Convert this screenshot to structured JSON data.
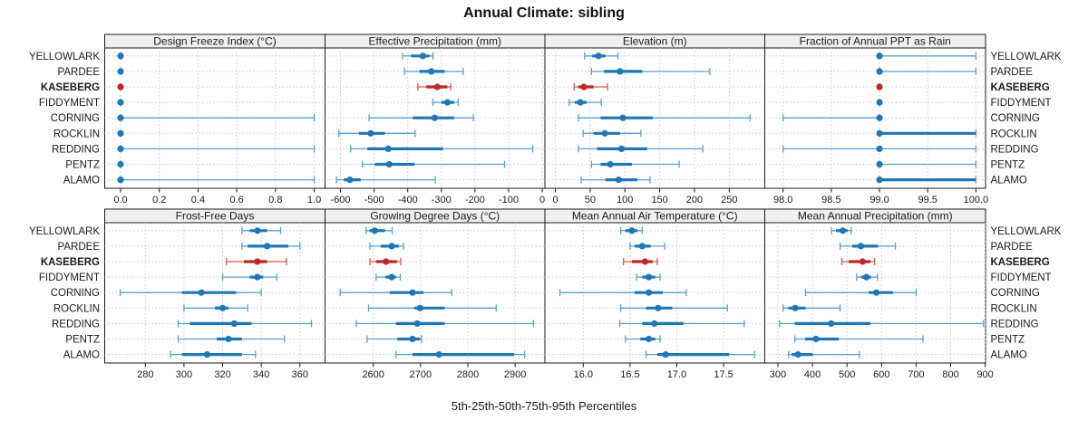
{
  "title": "Annual Climate: sibling",
  "caption": "5th-25th-50th-75th-95th Percentiles",
  "colors": {
    "normal": "#1f77b4",
    "normal_light": "#5b9fcf",
    "highlight": "#bf2626",
    "highlight_light": "#d05c50",
    "header_bg": "#f0f0f0",
    "border": "#1a1a1a",
    "grid": "#c8c8c8",
    "text": "#1a1a1a"
  },
  "stations": [
    "YELLOWLARK",
    "PARDEE",
    "KASEBERG",
    "FIDDYMENT",
    "CORNING",
    "ROCKLIN",
    "REDDING",
    "PENTZ",
    "ALAMO"
  ],
  "highlight_station": "KASEBERG",
  "chart_data": [
    {
      "type": "percentile-dotplot",
      "title": "Design Freeze Index (°C)",
      "percentile_labels": [
        "5th",
        "25th",
        "50th",
        "75th",
        "95th"
      ],
      "xlim": [
        -0.082,
        1.056
      ],
      "ticks": [
        0.0,
        0.2,
        0.4,
        0.6,
        0.8,
        1.0
      ],
      "tick_labels": [
        "0.0",
        "0.2",
        "0.4",
        "0.6",
        "0.8",
        "1.0"
      ],
      "series": [
        {
          "station": "YELLOWLARK",
          "values": [
            0,
            0,
            0,
            0,
            0
          ]
        },
        {
          "station": "PARDEE",
          "values": [
            0,
            0,
            0,
            0,
            0
          ]
        },
        {
          "station": "KASEBERG",
          "values": [
            0,
            0,
            0,
            0,
            0
          ]
        },
        {
          "station": "FIDDYMENT",
          "values": [
            0,
            0,
            0,
            0,
            0
          ]
        },
        {
          "station": "CORNING",
          "values": [
            0,
            0,
            0,
            0,
            1
          ]
        },
        {
          "station": "ROCKLIN",
          "values": [
            0,
            0,
            0,
            0,
            0
          ]
        },
        {
          "station": "REDDING",
          "values": [
            0,
            0,
            0,
            0,
            1
          ]
        },
        {
          "station": "PENTZ",
          "values": [
            0,
            0,
            0,
            0,
            0
          ]
        },
        {
          "station": "ALAMO",
          "values": [
            0,
            0,
            0,
            0,
            1
          ]
        }
      ]
    },
    {
      "type": "percentile-dotplot",
      "title": "Effective Precipitation (mm)",
      "percentile_labels": [
        "5th",
        "25th",
        "50th",
        "75th",
        "95th"
      ],
      "xlim": [
        -646,
        8
      ],
      "ticks": [
        -600,
        -500,
        -400,
        -300,
        -200,
        -100,
        0
      ],
      "tick_labels": [
        "-600",
        "-500",
        "-400",
        "-300",
        "-200",
        "-100",
        "0"
      ],
      "series": [
        {
          "station": "YELLOWLARK",
          "values": [
            -415,
            -390,
            -355,
            -335,
            -325
          ]
        },
        {
          "station": "PARDEE",
          "values": [
            -410,
            -365,
            -330,
            -290,
            -235
          ]
        },
        {
          "station": "KASEBERG",
          "values": [
            -370,
            -345,
            -312,
            -282,
            -272
          ]
        },
        {
          "station": "FIDDYMENT",
          "values": [
            -325,
            -300,
            -282,
            -262,
            -250
          ]
        },
        {
          "station": "CORNING",
          "values": [
            -515,
            -385,
            -320,
            -262,
            -205
          ]
        },
        {
          "station": "ROCKLIN",
          "values": [
            -605,
            -545,
            -510,
            -468,
            -378
          ]
        },
        {
          "station": "REDDING",
          "values": [
            -570,
            -520,
            -458,
            -295,
            -28
          ]
        },
        {
          "station": "PENTZ",
          "values": [
            -535,
            -498,
            -455,
            -380,
            -112
          ]
        },
        {
          "station": "ALAMO",
          "values": [
            -612,
            -590,
            -572,
            -540,
            -318
          ]
        }
      ]
    },
    {
      "type": "percentile-dotplot",
      "title": "Elevation (m)",
      "percentile_labels": [
        "5th",
        "25th",
        "50th",
        "75th",
        "95th"
      ],
      "xlim": [
        -15,
        301
      ],
      "ticks": [
        0,
        50,
        100,
        150,
        200,
        250
      ],
      "tick_labels": [
        "0",
        "50",
        "100",
        "150",
        "200",
        "250"
      ],
      "series": [
        {
          "station": "YELLOWLARK",
          "values": [
            42,
            53,
            62,
            72,
            90
          ]
        },
        {
          "station": "PARDEE",
          "values": [
            52,
            70,
            93,
            125,
            222
          ]
        },
        {
          "station": "KASEBERG",
          "values": [
            27,
            33,
            41,
            55,
            75
          ]
        },
        {
          "station": "FIDDYMENT",
          "values": [
            20,
            28,
            36,
            45,
            66
          ]
        },
        {
          "station": "CORNING",
          "values": [
            33,
            65,
            97,
            140,
            280
          ]
        },
        {
          "station": "ROCKLIN",
          "values": [
            40,
            55,
            71,
            93,
            123
          ]
        },
        {
          "station": "REDDING",
          "values": [
            33,
            60,
            95,
            132,
            212
          ]
        },
        {
          "station": "PENTZ",
          "values": [
            52,
            65,
            79,
            110,
            178
          ]
        },
        {
          "station": "ALAMO",
          "values": [
            37,
            72,
            91,
            118,
            136
          ]
        }
      ]
    },
    {
      "type": "percentile-dotplot",
      "title": "Fraction of Annual PPT as Rain",
      "percentile_labels": [
        "5th",
        "25th",
        "50th",
        "75th",
        "95th"
      ],
      "xlim": [
        97.81,
        100.1
      ],
      "ticks": [
        98.0,
        98.5,
        99.0,
        99.5,
        100.0
      ],
      "tick_labels": [
        "98.0",
        "98.5",
        "99.0",
        "99.5",
        "100.0"
      ],
      "series": [
        {
          "station": "YELLOWLARK",
          "values": [
            99,
            99,
            99,
            99,
            100
          ]
        },
        {
          "station": "PARDEE",
          "values": [
            99,
            99,
            99,
            99,
            100
          ]
        },
        {
          "station": "KASEBERG",
          "values": [
            99,
            99,
            99,
            99,
            99
          ]
        },
        {
          "station": "FIDDYMENT",
          "values": [
            99,
            99,
            99,
            99,
            99
          ]
        },
        {
          "station": "CORNING",
          "values": [
            98,
            99,
            99,
            99,
            99
          ]
        },
        {
          "station": "ROCKLIN",
          "values": [
            99,
            99,
            99,
            100,
            100
          ]
        },
        {
          "station": "REDDING",
          "values": [
            98,
            99,
            99,
            99,
            100
          ]
        },
        {
          "station": "PENTZ",
          "values": [
            99,
            99,
            99,
            99,
            100
          ]
        },
        {
          "station": "ALAMO",
          "values": [
            99,
            99,
            99,
            100,
            100
          ]
        }
      ]
    },
    {
      "type": "percentile-dotplot",
      "title": "Frost-Free Days",
      "percentile_labels": [
        "5th",
        "25th",
        "50th",
        "75th",
        "95th"
      ],
      "xlim": [
        259,
        373
      ],
      "ticks": [
        280,
        300,
        320,
        340,
        360
      ],
      "tick_labels": [
        "280",
        "300",
        "320",
        "340",
        "360"
      ],
      "series": [
        {
          "station": "YELLOWLARK",
          "values": [
            330,
            334,
            338,
            343,
            350
          ]
        },
        {
          "station": "PARDEE",
          "values": [
            330,
            333,
            343,
            354,
            360
          ]
        },
        {
          "station": "KASEBERG",
          "values": [
            322,
            331,
            338,
            343,
            353
          ]
        },
        {
          "station": "FIDDYMENT",
          "values": [
            320,
            334,
            338,
            341,
            348
          ]
        },
        {
          "station": "CORNING",
          "values": [
            267,
            299,
            309,
            327,
            340
          ]
        },
        {
          "station": "ROCKLIN",
          "values": [
            300,
            316,
            320,
            323,
            333
          ]
        },
        {
          "station": "REDDING",
          "values": [
            297,
            303,
            326,
            335,
            366
          ]
        },
        {
          "station": "PENTZ",
          "values": [
            297,
            317,
            323,
            330,
            352
          ]
        },
        {
          "station": "ALAMO",
          "values": [
            293,
            299,
            312,
            330,
            337
          ]
        }
      ]
    },
    {
      "type": "percentile-dotplot",
      "title": "Growing Degree Days (°C)",
      "percentile_labels": [
        "5th",
        "25th",
        "50th",
        "75th",
        "95th"
      ],
      "xlim": [
        2498,
        2963
      ],
      "ticks": [
        2600,
        2700,
        2800,
        2900
      ],
      "tick_labels": [
        "2600",
        "2700",
        "2800",
        "2900"
      ],
      "series": [
        {
          "station": "YELLOWLARK",
          "values": [
            2585,
            2592,
            2603,
            2625,
            2640
          ]
        },
        {
          "station": "PARDEE",
          "values": [
            2593,
            2616,
            2639,
            2654,
            2664
          ]
        },
        {
          "station": "KASEBERG",
          "values": [
            2593,
            2606,
            2627,
            2650,
            2658
          ]
        },
        {
          "station": "FIDDYMENT",
          "values": [
            2606,
            2626,
            2639,
            2648,
            2657
          ]
        },
        {
          "station": "CORNING",
          "values": [
            2530,
            2635,
            2683,
            2706,
            2766
          ]
        },
        {
          "station": "ROCKLIN",
          "values": [
            2590,
            2687,
            2699,
            2751,
            2860
          ]
        },
        {
          "station": "REDDING",
          "values": [
            2564,
            2648,
            2693,
            2751,
            2939
          ]
        },
        {
          "station": "PENTZ",
          "values": [
            2587,
            2651,
            2683,
            2699,
            2702
          ]
        },
        {
          "station": "ALAMO",
          "values": [
            2648,
            2683,
            2739,
            2898,
            2920
          ]
        }
      ]
    },
    {
      "type": "percentile-dotplot",
      "title": "Mean Annual Air Temperature (°C)",
      "percentile_labels": [
        "5th",
        "25th",
        "50th",
        "75th",
        "95th"
      ],
      "xlim": [
        15.59,
        17.94
      ],
      "ticks": [
        16.0,
        16.5,
        17.0,
        17.5
      ],
      "tick_labels": [
        "16.0",
        "16.5",
        "17.0",
        "17.5"
      ],
      "series": [
        {
          "station": "YELLOWLARK",
          "values": [
            16.4,
            16.45,
            16.52,
            16.58,
            16.63
          ]
        },
        {
          "station": "PARDEE",
          "values": [
            16.5,
            16.55,
            16.63,
            16.72,
            16.87
          ]
        },
        {
          "station": "KASEBERG",
          "values": [
            16.43,
            16.52,
            16.66,
            16.74,
            16.79
          ]
        },
        {
          "station": "FIDDYMENT",
          "values": [
            16.57,
            16.63,
            16.7,
            16.77,
            16.82
          ]
        },
        {
          "station": "CORNING",
          "values": [
            15.75,
            16.55,
            16.7,
            16.85,
            17.1
          ]
        },
        {
          "station": "ROCKLIN",
          "values": [
            16.4,
            16.67,
            16.8,
            16.95,
            17.54
          ]
        },
        {
          "station": "REDDING",
          "values": [
            16.39,
            16.63,
            16.76,
            17.07,
            17.72
          ]
        },
        {
          "station": "PENTZ",
          "values": [
            16.45,
            16.61,
            16.7,
            16.77,
            16.82
          ]
        },
        {
          "station": "ALAMO",
          "values": [
            16.67,
            16.79,
            16.88,
            17.56,
            17.83
          ]
        }
      ]
    },
    {
      "type": "percentile-dotplot",
      "title": "Mean Annual Precipitation (mm)",
      "percentile_labels": [
        "5th",
        "25th",
        "50th",
        "75th",
        "95th"
      ],
      "xlim": [
        262,
        901
      ],
      "ticks": [
        300,
        400,
        500,
        600,
        700,
        800,
        900
      ],
      "tick_labels": [
        "300",
        "400",
        "500",
        "600",
        "700",
        "800",
        "900"
      ],
      "series": [
        {
          "station": "YELLOWLARK",
          "values": [
            455,
            468,
            488,
            502,
            512
          ]
        },
        {
          "station": "PARDEE",
          "values": [
            480,
            515,
            540,
            590,
            640
          ]
        },
        {
          "station": "KASEBERG",
          "values": [
            485,
            505,
            545,
            568,
            580
          ]
        },
        {
          "station": "FIDDYMENT",
          "values": [
            528,
            541,
            556,
            570,
            588
          ]
        },
        {
          "station": "CORNING",
          "values": [
            380,
            563,
            585,
            633,
            700
          ]
        },
        {
          "station": "ROCKLIN",
          "values": [
            315,
            330,
            350,
            380,
            480
          ]
        },
        {
          "station": "REDDING",
          "values": [
            305,
            349,
            454,
            568,
            895
          ]
        },
        {
          "station": "PENTZ",
          "values": [
            349,
            379,
            410,
            476,
            720
          ]
        },
        {
          "station": "ALAMO",
          "values": [
            331,
            340,
            358,
            401,
            536
          ]
        }
      ]
    }
  ]
}
